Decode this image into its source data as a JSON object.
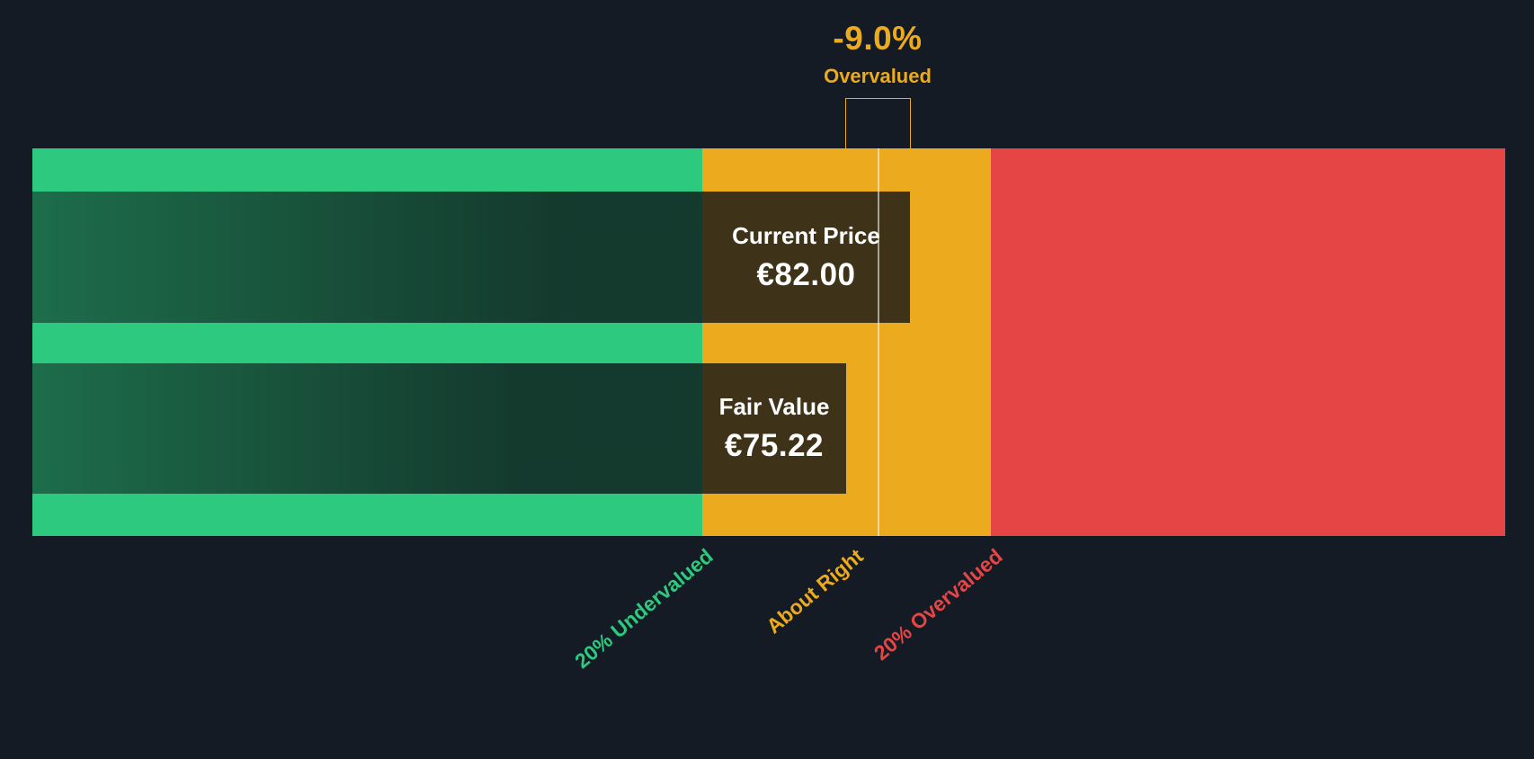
{
  "colors": {
    "background": "#151b24",
    "green": "#2dc97e",
    "amber": "#ecab1e",
    "red": "#e64545",
    "text_white": "#ffffff"
  },
  "annotation": {
    "percent": "-9.0%",
    "label": "Overvalued"
  },
  "current_price": {
    "title": "Current Price",
    "value": "€82.00"
  },
  "fair_value": {
    "title": "Fair Value",
    "value": "€75.22"
  },
  "zone_labels": {
    "undervalued": "20% Undervalued",
    "about_right": "About Right",
    "overvalued": "20% Overvalued"
  },
  "chart_data": {
    "type": "bar",
    "subtype": "valuation-gauge",
    "title": "",
    "bars": [
      {
        "label": "Current Price",
        "value": 82.0,
        "display": "€82.00"
      },
      {
        "label": "Fair Value",
        "value": 75.22,
        "display": "€75.22"
      }
    ],
    "currency": "€",
    "annotation": {
      "value_pct": -9.0,
      "display": "-9.0%",
      "status": "Overvalued"
    },
    "zones": [
      {
        "label": "20% Undervalued",
        "color": "#2dc97e",
        "boundary": "price 20% below fair value"
      },
      {
        "label": "About Right",
        "color": "#ecab1e",
        "boundary": "within 20% of fair value"
      },
      {
        "label": "20% Overvalued",
        "color": "#e64545",
        "boundary": "price 20% above fair value"
      }
    ],
    "marker_line": "fair value position",
    "legend_position": "none",
    "grid": false
  }
}
